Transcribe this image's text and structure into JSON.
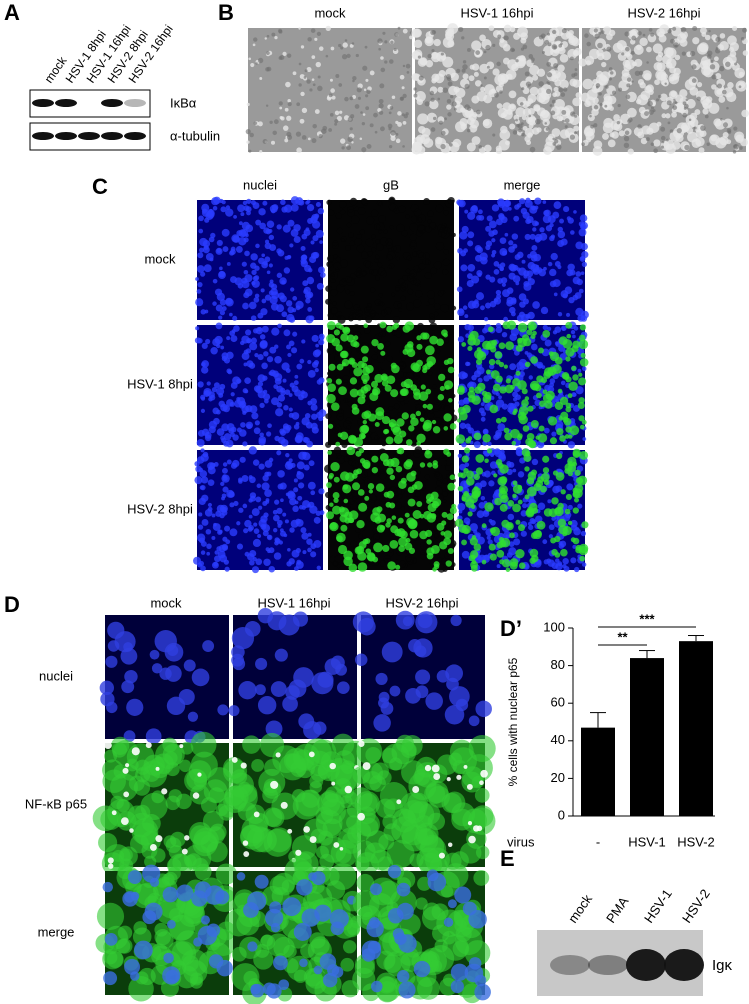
{
  "panels": {
    "A": {
      "letter": "A",
      "lanes": [
        "mock",
        "HSV-1 8hpi",
        "HSV-1 16hpi",
        "HSV-2 8hpi",
        "HSV-2 16hpi"
      ],
      "bands": [
        "IκBα",
        "α-tubulin"
      ]
    },
    "B": {
      "letter": "B",
      "columns": [
        "mock",
        "HSV-1 16hpi",
        "HSV-2 16hpi"
      ]
    },
    "C": {
      "letter": "C",
      "columns": [
        "nuclei",
        "gB",
        "merge"
      ],
      "rows": [
        "mock",
        "HSV-1 8hpi",
        "HSV-2 8hpi"
      ]
    },
    "D": {
      "letter": "D",
      "columns": [
        "mock",
        "HSV-1 16hpi",
        "HSV-2 16hpi"
      ],
      "rows": [
        "nuclei",
        "NF-κB p65",
        "merge"
      ]
    },
    "E": {
      "letter": "E",
      "lanes": [
        "mock",
        "PMA",
        "HSV-1",
        "HSV-2"
      ],
      "band": "Igκ"
    }
  },
  "chart_data": {
    "type": "bar",
    "panel_letter": "D’",
    "ylabel": "% cells with nuclear p65",
    "xlabel": "virus",
    "categories": [
      "-",
      "HSV-1",
      "HSV-2"
    ],
    "values": [
      47,
      84,
      93
    ],
    "errors": [
      8,
      4,
      3
    ],
    "color": "#000000",
    "ylim": [
      0,
      100
    ],
    "yticks": [
      0,
      20,
      40,
      60,
      80,
      100
    ],
    "annotations": [
      "**",
      "***"
    ]
  }
}
